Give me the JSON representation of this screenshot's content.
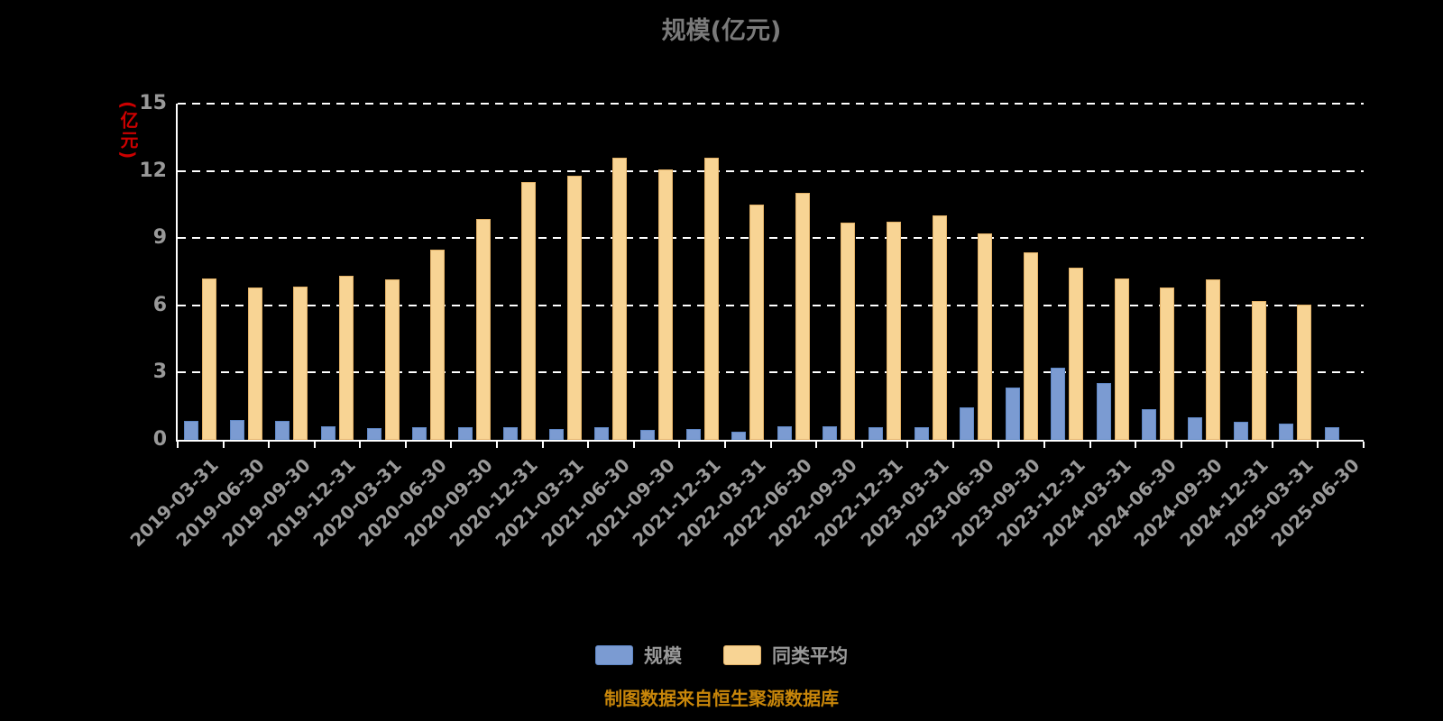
{
  "title": "规模(亿元)",
  "y_axis_unit": "(亿元)",
  "footer_note": "制图数据来自恒生聚源数据库",
  "colors": {
    "background": "#000000",
    "grid_line": "#ffffff",
    "axis_text": "#999999",
    "title_text": "#7a7a7a",
    "y_unit_text": "#cc0000",
    "note_text": "#c8860a",
    "scale_bar_fill": "#7b9bd2",
    "scale_bar_border": "#5e86c4",
    "average_bar_fill": "#f8d494",
    "average_bar_border": "#e2b167"
  },
  "legend": [
    {
      "label": "规模",
      "color": "#7b9bd2"
    },
    {
      "label": "同类平均",
      "color": "#f8d494"
    }
  ],
  "chart_data": {
    "type": "bar",
    "title": "规模(亿元)",
    "xlabel": "",
    "ylabel": "(亿元)",
    "ylim": [
      0,
      15
    ],
    "yticks": [
      0,
      3,
      6,
      9,
      12,
      15
    ],
    "grid": "horizontal-dashed",
    "legend_position": "bottom",
    "categories": [
      "2019-03-31",
      "2019-06-30",
      "2019-09-30",
      "2019-12-31",
      "2020-03-31",
      "2020-06-30",
      "2020-09-30",
      "2020-12-31",
      "2021-03-31",
      "2021-06-30",
      "2021-09-30",
      "2021-12-31",
      "2022-03-31",
      "2022-06-30",
      "2022-09-30",
      "2022-12-31",
      "2023-03-31",
      "2023-06-30",
      "2023-09-30",
      "2023-12-31",
      "2024-03-31",
      "2024-06-30",
      "2024-09-30",
      "2024-12-31",
      "2025-03-31",
      "2025-06-30"
    ],
    "series": [
      {
        "name": "规模",
        "color": "#7b9bd2",
        "border_color": "#5e86c4",
        "values": [
          0.85,
          0.9,
          0.85,
          0.62,
          0.52,
          0.58,
          0.56,
          0.56,
          0.48,
          0.55,
          0.44,
          0.48,
          0.36,
          0.62,
          0.6,
          0.56,
          0.56,
          1.45,
          2.33,
          3.2,
          2.53,
          1.37,
          1.0,
          0.8,
          0.72,
          0.56
        ]
      },
      {
        "name": "同类平均",
        "color": "#f8d494",
        "border_color": "#e2b167",
        "values": [
          7.2,
          6.8,
          6.85,
          7.3,
          7.15,
          8.5,
          9.85,
          11.5,
          11.8,
          12.6,
          12.05,
          12.6,
          10.5,
          11.0,
          9.7,
          9.75,
          10.0,
          9.2,
          8.35,
          7.7,
          7.2,
          6.8,
          7.15,
          6.2,
          6.05,
          null
        ]
      }
    ]
  }
}
